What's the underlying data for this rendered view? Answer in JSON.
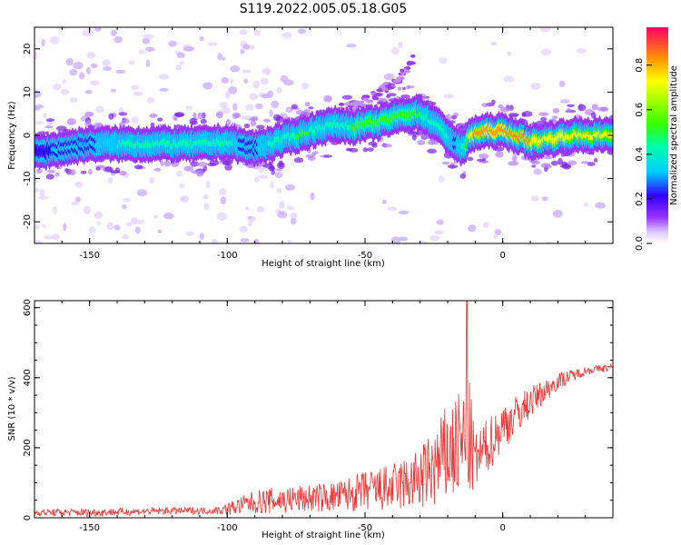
{
  "title": "S119.2022.005.05.18.G05",
  "chart_data": [
    {
      "type": "heatmap",
      "xlabel": "Height of straight line (km)",
      "ylabel": "Frequency (Hz)",
      "xlim": [
        -170,
        40
      ],
      "ylim": [
        -25,
        25
      ],
      "xticks": [
        -150,
        -100,
        -50,
        0
      ],
      "yticks": [
        -20,
        -10,
        0,
        10,
        20
      ],
      "colorbar": {
        "label": "Normalized spectral amplitude",
        "range": [
          0,
          0.97
        ],
        "ticks": [
          0.0,
          0.2,
          0.4,
          0.6,
          0.8
        ]
      },
      "ridge": {
        "x": [
          -170,
          -160,
          -150,
          -140,
          -130,
          -120,
          -110,
          -100,
          -95,
          -90,
          -85,
          -80,
          -75,
          -70,
          -65,
          -60,
          -55,
          -50,
          -45,
          -40,
          -35,
          -30,
          -25,
          -20,
          -17,
          -15,
          -13,
          -12,
          -10,
          -5,
          0,
          5,
          10,
          15,
          20,
          25,
          30,
          35,
          40
        ],
        "y": [
          -4,
          -3,
          -2,
          -2,
          -2,
          -2,
          -2,
          -1.5,
          -2.5,
          -3,
          -2,
          -1,
          0,
          1,
          2,
          2.5,
          2,
          2.5,
          3,
          4,
          5,
          5,
          3,
          0,
          -2,
          -3,
          -2,
          0,
          0.5,
          1,
          1,
          0,
          -1.5,
          -1,
          -0.5,
          0,
          0,
          0,
          0
        ],
        "amplitude": [
          0.3,
          0.35,
          0.4,
          0.45,
          0.45,
          0.45,
          0.5,
          0.5,
          0.4,
          0.4,
          0.45,
          0.5,
          0.55,
          0.55,
          0.5,
          0.5,
          0.55,
          0.6,
          0.6,
          0.65,
          0.6,
          0.55,
          0.5,
          0.45,
          0.4,
          0.45,
          0.6,
          0.8,
          0.9,
          0.95,
          0.95,
          0.9,
          0.85,
          0.8,
          0.85,
          0.8,
          0.8,
          0.75,
          0.75
        ]
      },
      "branch": {
        "x": [
          -55,
          -50,
          -45,
          -40,
          -35,
          -32
        ],
        "y": [
          6,
          8,
          10,
          12,
          15,
          18
        ]
      }
    },
    {
      "type": "line",
      "xlabel": "Height of straight line (km)",
      "ylabel": "SNR (10 * v/v)",
      "xlim": [
        -170,
        40
      ],
      "ylim": [
        0,
        620
      ],
      "xticks": [
        -150,
        -100,
        -50,
        0
      ],
      "yticks": [
        0,
        200,
        400,
        600
      ],
      "color": "#ee3333",
      "envelope": {
        "x": [
          -170,
          -150,
          -120,
          -105,
          -100,
          -90,
          -80,
          -70,
          -60,
          -50,
          -40,
          -30,
          -25,
          -20,
          -15,
          -12,
          -10,
          -5,
          0,
          10,
          20,
          30,
          40
        ],
        "mean": [
          15,
          15,
          20,
          20,
          25,
          45,
          50,
          55,
          60,
          75,
          85,
          110,
          140,
          180,
          210,
          220,
          160,
          210,
          260,
          330,
          390,
          420,
          430
        ],
        "spread": [
          10,
          12,
          10,
          10,
          18,
          35,
          40,
          40,
          45,
          60,
          70,
          90,
          120,
          150,
          160,
          170,
          80,
          80,
          70,
          45,
          25,
          12,
          10
        ]
      },
      "peak": {
        "x": -13,
        "y": 620
      }
    }
  ]
}
